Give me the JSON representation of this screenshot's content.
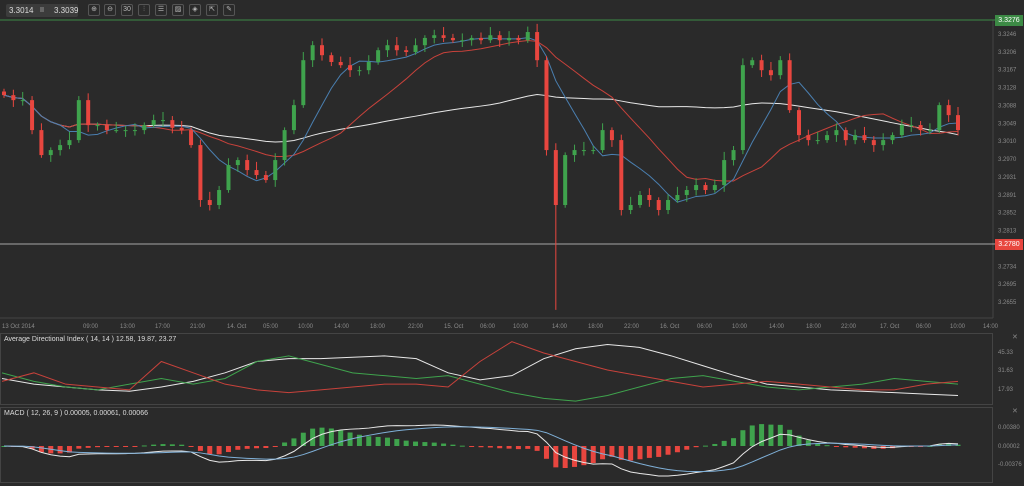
{
  "toolbar": {
    "bid": "3.3014",
    "ask": "3.3039",
    "buttons": [
      {
        "icon": "zoom-in-icon",
        "glyph": "⊕"
      },
      {
        "icon": "zoom-out-icon",
        "glyph": "⊖"
      },
      {
        "icon": "timeframe-icon",
        "glyph": "30"
      },
      {
        "icon": "chart-type-icon",
        "glyph": "⫶"
      },
      {
        "icon": "indicators-icon",
        "glyph": "☰"
      },
      {
        "icon": "chart-image-icon",
        "glyph": "▨"
      },
      {
        "icon": "template-icon",
        "glyph": "◈"
      },
      {
        "icon": "export-icon",
        "glyph": "⇱"
      },
      {
        "icon": "draw-icon",
        "glyph": "✎"
      }
    ]
  },
  "colors": {
    "bull": "#3fa34d",
    "bear": "#e8463f",
    "ma_fast": "#4a7fb0",
    "ma_mid": "#c8423b",
    "ma_slow": "#e8e8e8",
    "high_line": "#3c8a45",
    "low_line": "#cfcfcf",
    "bg": "#2a2a2a"
  },
  "chart_data": [
    {
      "type": "candlestick",
      "title": "",
      "high_marker": "3.3276",
      "low_marker": "3.2780",
      "y_ticks": [
        "3.3246",
        "3.3206",
        "3.3167",
        "3.3128",
        "3.3088",
        "3.3049",
        "3.3010",
        "3.2970",
        "3.2931",
        "3.2891",
        "3.2852",
        "3.2813",
        "3.2734",
        "3.2695",
        "3.2655"
      ],
      "x_ticks": [
        "13 Oct 2014",
        "09:00",
        "13:00",
        "17:00",
        "21:00",
        "14. Oct",
        "05:00",
        "10:00",
        "14:00",
        "18:00",
        "22:00",
        "15. Oct",
        "06:00",
        "10:00",
        "14:00",
        "18:00",
        "22:00",
        "16. Oct",
        "06:00",
        "10:00",
        "14:00",
        "18:00",
        "22:00",
        "17. Oct",
        "06:00",
        "10:00",
        "14:00"
      ],
      "closes": [
        3.3111,
        3.31,
        3.31,
        3.3034,
        3.2979,
        3.299,
        3.3001,
        3.3012,
        3.31,
        3.3045,
        3.3045,
        3.3034,
        3.3034,
        3.3034,
        3.3034,
        3.3045,
        3.3056,
        3.3056,
        3.3039,
        3.3034,
        3.3001,
        3.288,
        3.2869,
        3.2902,
        3.2957,
        3.2968,
        3.2946,
        3.2935,
        3.2924,
        3.2968,
        3.3034,
        3.3089,
        3.3188,
        3.3221,
        3.3199,
        3.3184,
        3.3177,
        3.3166,
        3.3166,
        3.3184,
        3.321,
        3.3221,
        3.321,
        3.3206,
        3.3221,
        3.3237,
        3.3243,
        3.3237,
        3.3232,
        3.3232,
        3.3237,
        3.3232,
        3.3243,
        3.3232,
        3.3237,
        3.3232,
        3.325,
        3.3188,
        3.299,
        3.2869,
        3.2979,
        3.299,
        3.299,
        3.299,
        3.3034,
        3.3012,
        3.2858,
        3.2869,
        3.2891,
        3.288,
        3.2858,
        3.288,
        3.2891,
        3.2902,
        3.2913,
        3.2902,
        3.2913,
        3.2968,
        3.299,
        3.3177,
        3.3188,
        3.3166,
        3.3155,
        3.3188,
        3.3078,
        3.3023,
        3.3012,
        3.3012,
        3.3023,
        3.3034,
        3.3012,
        3.3023,
        3.3012,
        3.3001,
        3.3012,
        3.3023,
        3.3045,
        3.3045,
        3.3034,
        3.3034,
        3.3089,
        3.3067,
        3.3034
      ],
      "spike_low": {
        "index": 59,
        "price": 3.2638
      }
    },
    {
      "type": "line",
      "title": "Average Directional Index ( 14, 14 ) 12.58, 19.87, 23.27",
      "y_ticks": [
        "45.33",
        "31.63",
        "17.93"
      ],
      "ylim": [
        8,
        56
      ],
      "series": [
        {
          "color": "#e8e8e8",
          "values": [
            26,
            22,
            20,
            18,
            17,
            20,
            24,
            30,
            38,
            40,
            40,
            41,
            42,
            40,
            30,
            25,
            28,
            40,
            47,
            50,
            48,
            42,
            35,
            28,
            22,
            20,
            18,
            17,
            16,
            15,
            14
          ]
        },
        {
          "color": "#3fa34d",
          "values": [
            30,
            24,
            20,
            18,
            22,
            26,
            22,
            26,
            38,
            42,
            36,
            30,
            28,
            26,
            28,
            22,
            16,
            12,
            10,
            14,
            20,
            26,
            28,
            24,
            20,
            18,
            20,
            22,
            26,
            24,
            22
          ]
        },
        {
          "color": "#c8423b",
          "values": [
            24,
            30,
            22,
            20,
            18,
            38,
            30,
            22,
            18,
            16,
            18,
            20,
            22,
            22,
            20,
            38,
            52,
            44,
            38,
            32,
            28,
            24,
            20,
            22,
            24,
            22,
            20,
            18,
            18,
            22,
            24
          ]
        }
      ]
    },
    {
      "type": "macd",
      "title": "MACD ( 12, 26, 9 ) 0.00005, 0.00061, 0.00066",
      "y_ticks": [
        "0.00380",
        "0.00002",
        "-0.00376"
      ]
    }
  ]
}
